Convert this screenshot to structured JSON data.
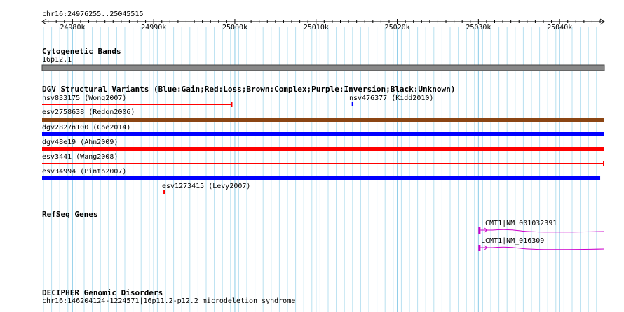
{
  "location": "chr16:24976255..25045515",
  "ruler": {
    "ticks": [
      "24980k",
      "24990k",
      "25000k",
      "25010k",
      "25020k",
      "25030k",
      "25040k"
    ]
  },
  "tracks": {
    "cytoband": {
      "title": "Cytogenetic Bands",
      "band_label": "16p12.1",
      "band_color": "#888888"
    },
    "dgv": {
      "title": "DGV Structural Variants (Blue:Gain;Red:Loss;Brown:Complex;Purple:Inversion;Black:Unknown)",
      "legend_colors": {
        "gain": "#0000ff",
        "loss": "#ff0000",
        "complex": "#8b4513",
        "inversion": "#800080",
        "unknown": "#000000"
      },
      "features": [
        {
          "label": "nsv833175 (Wong2007)",
          "type": "loss",
          "start": 24976255,
          "end": 24999700
        },
        {
          "label": "nsv476377 (Kidd2010)",
          "type": "gain",
          "start": 25014400,
          "end": 25014600
        },
        {
          "label": "esv2758638 (Redon2006)",
          "type": "complex",
          "start": 24976255,
          "end": 25045515
        },
        {
          "label": "dgv2827n100 (Coe2014)",
          "type": "gain",
          "start": 24976255,
          "end": 25045515
        },
        {
          "label": "dgv48e19 (Ahn2009)",
          "type": "loss",
          "start": 24976255,
          "end": 25045515
        },
        {
          "label": "esv3441 (Wang2008)",
          "type": "loss",
          "start": 24976255,
          "end": 25045515
        },
        {
          "label": "esv34994 (Pinto2007)",
          "type": "gain",
          "start": 24976255,
          "end": 25045000
        },
        {
          "label": "esv1273415 (Levy2007)",
          "type": "loss",
          "start": 24991200,
          "end": 24991400
        }
      ]
    },
    "refseq": {
      "title": "RefSeq Genes",
      "gene_color": "#cc00cc",
      "genes": [
        {
          "label": "LCMT1|NM_001032391",
          "start": 25030000
        },
        {
          "label": "LCMT1|NM_016309",
          "start": 25030000
        }
      ]
    },
    "decipher": {
      "title": "DECIPHER Genomic Disorders",
      "feature_label": "chr16:146204124-1224571|16p11.2-p12.2 microdeletion syndrome"
    }
  }
}
